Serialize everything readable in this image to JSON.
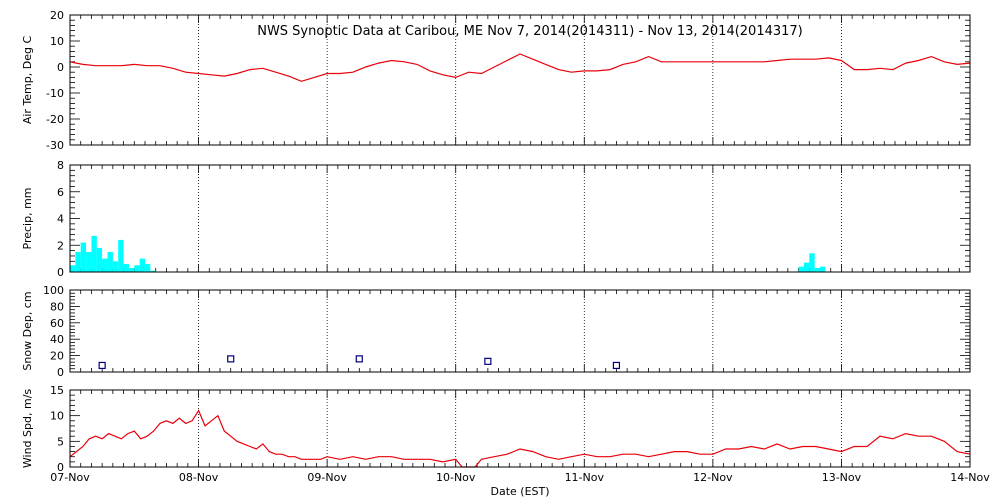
{
  "figure": {
    "title": "NWS Synoptic Data at Caribou, ME   Nov  7, 2014(2014311) - Nov 13, 2014(2014317)",
    "xlabel": "Date (EST)",
    "x_tick_labels": [
      "07-Nov",
      "08-Nov",
      "09-Nov",
      "10-Nov",
      "11-Nov",
      "12-Nov",
      "13-Nov",
      "14-Nov"
    ]
  },
  "chart_data": [
    {
      "type": "line",
      "id": "air-temp",
      "ylabel": "Air Temp, Deg C",
      "ylim": [
        -30,
        20
      ],
      "yticks": [
        -30,
        -20,
        -10,
        0,
        10,
        20
      ],
      "x_units": "days since 07-Nov 00:00 EST",
      "xlim": [
        0,
        7
      ],
      "color": "#e8000b",
      "series": [
        {
          "x": [
            0.0,
            0.05,
            0.1,
            0.2,
            0.3,
            0.4,
            0.5,
            0.6,
            0.7,
            0.8,
            0.9,
            1.0,
            1.1,
            1.2,
            1.3,
            1.4,
            1.5,
            1.6,
            1.7,
            1.8,
            1.9,
            2.0,
            2.1,
            2.2,
            2.3,
            2.4,
            2.5,
            2.6,
            2.7,
            2.8,
            2.9,
            3.0,
            3.1,
            3.2,
            3.3,
            3.4,
            3.5,
            3.6,
            3.7,
            3.8,
            3.9,
            4.0,
            4.1,
            4.2,
            4.3,
            4.4,
            4.5,
            4.6,
            4.7,
            4.8,
            4.9,
            5.0,
            5.1,
            5.2,
            5.3,
            5.4,
            5.5,
            5.6,
            5.7,
            5.8,
            5.9,
            6.0,
            6.1,
            6.2,
            6.3,
            6.4,
            6.5,
            6.6,
            6.7,
            6.8,
            6.9,
            7.0
          ],
          "y": [
            2,
            1.5,
            1,
            0.5,
            0.5,
            0.5,
            1,
            0.5,
            0.5,
            -0.5,
            -2,
            -2.5,
            -3,
            -3.5,
            -2.5,
            -1,
            -0.5,
            -2,
            -3.5,
            -5.5,
            -4,
            -2.5,
            -2.5,
            -2,
            0,
            1.5,
            2.5,
            2,
            1,
            -1.5,
            -3,
            -4,
            -2,
            -2.5,
            0,
            2.5,
            5,
            3,
            1,
            -1,
            -2,
            -1.5,
            -1.5,
            -1,
            1,
            2,
            4,
            2,
            2,
            2,
            2,
            2,
            2,
            2,
            2,
            2,
            2.5,
            3,
            3,
            3,
            3.5,
            2.5,
            -1,
            -1,
            -0.5,
            -1,
            1.5,
            2.5,
            4,
            2,
            1,
            1.5
          ]
        }
      ]
    },
    {
      "type": "bar",
      "id": "precip",
      "ylabel": "Precip, mm",
      "ylim": [
        0,
        8
      ],
      "yticks": [
        0,
        2,
        4,
        6,
        8
      ],
      "x_units": "days since 07-Nov 00:00 EST",
      "xlim": [
        0,
        7
      ],
      "bar_width_days": 0.0417,
      "color": "#00ffff",
      "series": [
        {
          "x": [
            0.0,
            0.042,
            0.083,
            0.125,
            0.167,
            0.208,
            0.25,
            0.292,
            0.333,
            0.375,
            0.417,
            0.458,
            0.5,
            0.542,
            0.583,
            0.625,
            0.667,
            5.667,
            5.708,
            5.75,
            5.792,
            5.833
          ],
          "y": [
            0.5,
            1.5,
            2.2,
            1.5,
            2.7,
            1.8,
            1.0,
            1.5,
            0.8,
            2.4,
            0.6,
            0.3,
            0.5,
            1.0,
            0.6,
            0.1,
            0,
            0.4,
            0.7,
            1.4,
            0.3,
            0.4
          ]
        }
      ]
    },
    {
      "type": "scatter",
      "id": "snow-depth",
      "ylabel": "Snow Dep, cm",
      "ylim": [
        0,
        100
      ],
      "yticks": [
        0,
        20,
        40,
        60,
        80,
        100
      ],
      "x_units": "days since 07-Nov 00:00 EST",
      "xlim": [
        0,
        7
      ],
      "color": "#000080",
      "series": [
        {
          "x": [
            0.25,
            1.25,
            2.25,
            3.25,
            4.25
          ],
          "y": [
            8,
            16,
            16,
            13,
            8
          ]
        }
      ]
    },
    {
      "type": "line",
      "id": "wind-speed",
      "ylabel": "Wind Spd, m/s",
      "ylim": [
        0,
        15
      ],
      "yticks": [
        0,
        5,
        10,
        15
      ],
      "x_units": "days since 07-Nov 00:00 EST",
      "xlim": [
        0,
        7
      ],
      "color": "#e8000b",
      "series": [
        {
          "x": [
            0.0,
            0.05,
            0.1,
            0.15,
            0.2,
            0.25,
            0.3,
            0.35,
            0.4,
            0.45,
            0.5,
            0.55,
            0.6,
            0.65,
            0.7,
            0.75,
            0.8,
            0.85,
            0.9,
            0.95,
            1.0,
            1.05,
            1.1,
            1.15,
            1.2,
            1.25,
            1.3,
            1.35,
            1.4,
            1.45,
            1.5,
            1.55,
            1.6,
            1.65,
            1.7,
            1.75,
            1.8,
            1.85,
            1.9,
            1.95,
            2.0,
            2.1,
            2.2,
            2.3,
            2.4,
            2.5,
            2.6,
            2.7,
            2.8,
            2.9,
            3.0,
            3.05,
            3.1,
            3.15,
            3.2,
            3.3,
            3.4,
            3.5,
            3.6,
            3.7,
            3.8,
            3.9,
            4.0,
            4.1,
            4.2,
            4.3,
            4.4,
            4.5,
            4.6,
            4.7,
            4.8,
            4.9,
            5.0,
            5.1,
            5.2,
            5.3,
            5.4,
            5.5,
            5.6,
            5.7,
            5.8,
            5.9,
            6.0,
            6.1,
            6.2,
            6.3,
            6.4,
            6.5,
            6.6,
            6.7,
            6.8,
            6.9,
            7.0
          ],
          "y": [
            2,
            3,
            4,
            5.5,
            6,
            5.5,
            6.5,
            6,
            5.5,
            6.5,
            7,
            5.5,
            6,
            7,
            8.5,
            9,
            8.5,
            9.5,
            8.5,
            9,
            11,
            8,
            9,
            10,
            7,
            6,
            5,
            4.5,
            4,
            3.5,
            4.5,
            3,
            2.5,
            2.5,
            2,
            2,
            1.5,
            1.5,
            1.5,
            1.5,
            2,
            1.5,
            2,
            1.5,
            2,
            2,
            1.5,
            1.5,
            1.5,
            1,
            1.5,
            0,
            0,
            0,
            1.5,
            2,
            2.5,
            3.5,
            3,
            2,
            1.5,
            2,
            2.5,
            2,
            2,
            2.5,
            2.5,
            2,
            2.5,
            3,
            3,
            2.5,
            2.5,
            3.5,
            3.5,
            4,
            3.5,
            4.5,
            3.5,
            4,
            4,
            3.5,
            3,
            4,
            4,
            6,
            5.5,
            6.5,
            6,
            6,
            5,
            3,
            2.5
          ]
        }
      ]
    }
  ]
}
